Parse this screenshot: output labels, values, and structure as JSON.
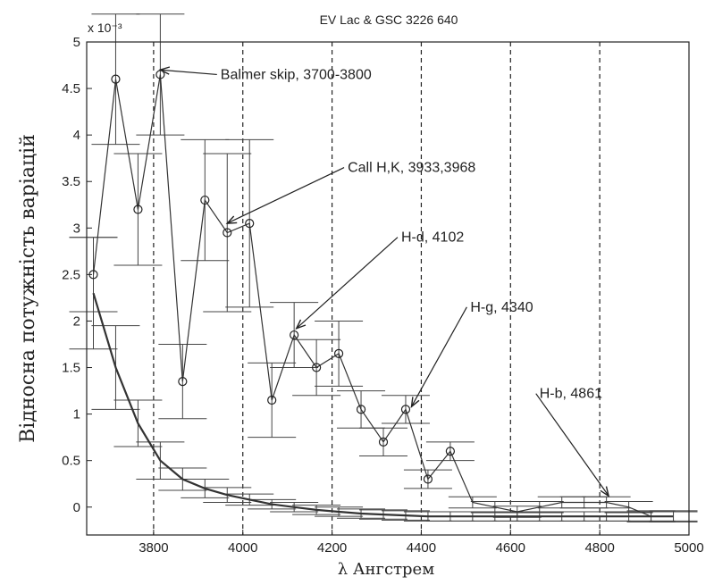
{
  "chart_data": {
    "type": "line",
    "title": "EV Lac & GSC 3226 640",
    "xlabel": "λ  Ангстрем",
    "ylabel": "Відносна потужність варіацій",
    "y_exponent": "x 10⁻³",
    "xlim": [
      3650,
      5000
    ],
    "ylim": [
      -0.3,
      5
    ],
    "x_ticks": [
      3800,
      4000,
      4200,
      4400,
      4600,
      4800,
      5000
    ],
    "y_ticks": [
      0,
      0.5,
      1,
      1.5,
      2,
      2.5,
      3,
      3.5,
      4,
      4.5,
      5
    ],
    "x_tick_labels": [
      "3800",
      "4000",
      "4200",
      "4400",
      "4600",
      "4800",
      "5000"
    ],
    "y_tick_labels": [
      "0",
      "0.5",
      "1",
      "1.5",
      "2",
      "2.5",
      "3",
      "3.5",
      "4",
      "4.5",
      "5"
    ],
    "vertical_dashed_lines": [
      3800,
      4000,
      4200,
      4400,
      4600,
      4800
    ],
    "grid": false,
    "series": [
      {
        "x": [
          3665,
          3715,
          3765,
          3815,
          3865,
          3915,
          3965,
          4015,
          4065,
          4115,
          4165,
          4215,
          4265,
          4315,
          4365,
          4415,
          4465,
          4515,
          4565,
          4615,
          4665,
          4715,
          4765,
          4815,
          4865,
          4915,
          4965
        ],
        "y": [
          2.5,
          4.6,
          3.2,
          4.65,
          1.35,
          3.3,
          2.95,
          3.05,
          1.15,
          1.85,
          1.5,
          1.65,
          1.05,
          0.7,
          1.05,
          0.3,
          0.6,
          0.05,
          0.0,
          -0.05,
          0.0,
          0.05,
          0.05,
          0.05,
          0.0,
          -0.1,
          -0.1
        ],
        "yerr": [
          0.4,
          0.7,
          0.6,
          0.65,
          0.4,
          0.65,
          0.85,
          0.9,
          0.4,
          0.35,
          0.3,
          0.35,
          0.2,
          0.15,
          0.15,
          0.1,
          0.1,
          0.06,
          0.06,
          0.06,
          0.06,
          0.06,
          0.06,
          0.06,
          0.06,
          0.06,
          0.06
        ],
        "marked_points": 17
      },
      {
        "x": [
          3665,
          3715,
          3765,
          3815,
          3865,
          3915,
          3965,
          4015,
          4065,
          4115,
          4165,
          4215,
          4265,
          4315,
          4365,
          4415,
          4465,
          4515,
          4565,
          4615,
          4665,
          4715,
          4765,
          4815,
          4865,
          4915,
          4965
        ],
        "y": [
          2.3,
          1.5,
          0.9,
          0.5,
          0.3,
          0.2,
          0.13,
          0.08,
          0.03,
          0.0,
          -0.03,
          -0.05,
          -0.07,
          -0.08,
          -0.09,
          -0.1,
          -0.1,
          -0.1,
          -0.1,
          -0.1,
          -0.1,
          -0.1,
          -0.1,
          -0.1,
          -0.1,
          -0.1,
          -0.1
        ],
        "yerr": [
          0.6,
          0.45,
          0.25,
          0.2,
          0.12,
          0.1,
          0.08,
          0.06,
          0.05,
          0.05,
          0.05,
          0.05,
          0.05,
          0.05,
          0.05,
          0.05,
          0.05,
          0.05,
          0.05,
          0.05,
          0.05,
          0.05,
          0.05,
          0.05,
          0.05,
          0.05,
          0.05
        ],
        "marked_points": 0
      }
    ],
    "annotations": [
      {
        "text": "Balmer skip,  3700-3800",
        "x": 3950,
        "y": 4.65,
        "arrow_to": [
          3815,
          4.7
        ]
      },
      {
        "text": "Call H,K,  3933,3968",
        "x": 4235,
        "y": 3.65,
        "arrow_to": [
          3965,
          3.05
        ]
      },
      {
        "text": "H-d,  4102",
        "x": 4355,
        "y": 2.9,
        "arrow_to": [
          4120,
          1.92
        ]
      },
      {
        "text": "H-g,   4340",
        "x": 4510,
        "y": 2.15,
        "arrow_to": [
          4378,
          1.08
        ]
      },
      {
        "text": "H-b,  4861",
        "x": 4665,
        "y": 1.22,
        "arrow_to": [
          4820,
          0.12
        ]
      }
    ]
  }
}
